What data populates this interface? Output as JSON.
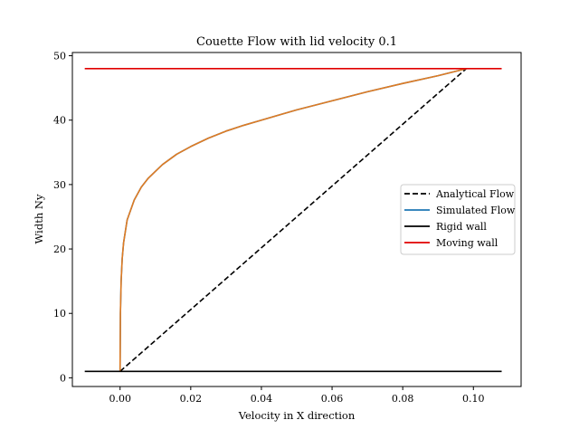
{
  "chart_data": {
    "type": "line",
    "title": "Couette Flow with lid velocity 0.1",
    "xlabel": "Velocity in X direction",
    "ylabel": "Width Ny",
    "xlim": [
      -0.0135,
      0.1135
    ],
    "ylim": [
      -1.35,
      50.5
    ],
    "xticks": [
      0.0,
      0.02,
      0.04,
      0.06,
      0.08,
      0.1
    ],
    "xtick_labels": [
      "0.00",
      "0.02",
      "0.04",
      "0.06",
      "0.08",
      "0.10"
    ],
    "yticks": [
      0,
      10,
      20,
      30,
      40,
      50
    ],
    "ytick_labels": [
      "0",
      "10",
      "20",
      "30",
      "40",
      "50"
    ],
    "grid": false,
    "legend_position": "center-right",
    "series": [
      {
        "name": "Analytical Flow",
        "color": "#000000",
        "style": "dashed",
        "x": [
          0.0,
          0.098
        ],
        "y": [
          1,
          48
        ]
      },
      {
        "name": "Simulated Flow",
        "color": "#1f77b4",
        "style": "solid",
        "x": [
          0.0,
          0.0001,
          0.0003,
          0.0006,
          0.001,
          0.002,
          0.004,
          0.006,
          0.008,
          0.012,
          0.016,
          0.02,
          0.025,
          0.03,
          0.035,
          0.04,
          0.05,
          0.06,
          0.07,
          0.08,
          0.09,
          0.098
        ],
        "y": [
          1,
          10,
          15,
          18.5,
          21,
          24.5,
          27.6,
          29.6,
          31.0,
          33.1,
          34.7,
          35.9,
          37.2,
          38.3,
          39.2,
          40.0,
          41.6,
          43.0,
          44.4,
          45.7,
          46.9,
          48
        ]
      },
      {
        "name": "",
        "color": "#e07b22",
        "style": "solid",
        "x": [
          0.0,
          0.0001,
          0.0003,
          0.0006,
          0.001,
          0.002,
          0.004,
          0.006,
          0.008,
          0.012,
          0.016,
          0.02,
          0.025,
          0.03,
          0.035,
          0.04,
          0.05,
          0.06,
          0.07,
          0.08,
          0.09,
          0.098
        ],
        "y": [
          1,
          10,
          15,
          18.5,
          21,
          24.5,
          27.6,
          29.6,
          31.0,
          33.1,
          34.7,
          35.9,
          37.2,
          38.3,
          39.2,
          40.0,
          41.6,
          43.0,
          44.4,
          45.7,
          46.9,
          48
        ]
      },
      {
        "name": "Rigid wall",
        "color": "#000000",
        "style": "solid",
        "x": [
          -0.01,
          0.108
        ],
        "y": [
          1,
          1
        ]
      },
      {
        "name": "Moving wall",
        "color": "#e00000",
        "style": "solid",
        "x": [
          -0.01,
          0.108
        ],
        "y": [
          48,
          48
        ]
      }
    ]
  }
}
